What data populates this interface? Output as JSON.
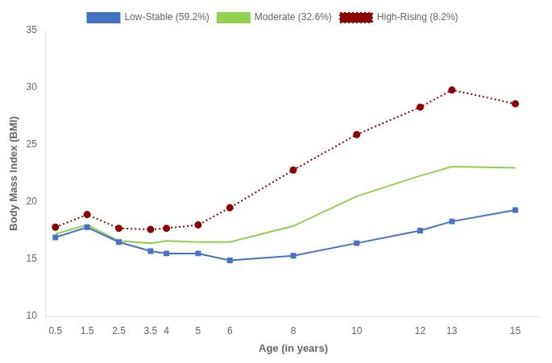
{
  "chart_data": {
    "type": "line",
    "x": [
      0.5,
      1.5,
      2.5,
      3.5,
      4,
      5,
      6,
      8,
      10,
      12,
      13,
      15
    ],
    "series": [
      {
        "name": "Low-Stable (59.2%)",
        "color": "#4472C4",
        "marker": "square",
        "line_style": "solid",
        "values": [
          16.9,
          17.8,
          16.5,
          15.7,
          15.5,
          15.5,
          14.9,
          15.3,
          16.4,
          17.5,
          18.3,
          19.3
        ]
      },
      {
        "name": "Moderate (32.6%)",
        "color": "#92D050",
        "marker": "none",
        "line_style": "solid",
        "values": [
          17.2,
          18.0,
          16.6,
          16.4,
          16.6,
          16.5,
          16.5,
          17.9,
          20.5,
          22.3,
          23.1,
          23.0
        ]
      },
      {
        "name": "High-Rising (8.2%)",
        "color": "#8B0000",
        "marker": "circle",
        "line_style": "dotted",
        "values": [
          17.8,
          18.9,
          17.7,
          17.6,
          17.7,
          18.0,
          19.5,
          22.8,
          25.9,
          28.3,
          29.8,
          28.6
        ]
      }
    ],
    "xlabel": "Age (in years)",
    "ylabel": "Body Mass Index (BMI)",
    "xlim": [
      0.2,
      15.8
    ],
    "xticks": [
      0.5,
      1.5,
      2.5,
      3.5,
      4,
      5,
      6,
      8,
      10,
      12,
      13,
      15
    ],
    "ylim": [
      10,
      35
    ],
    "yticks": [
      10,
      15,
      20,
      25,
      30,
      35
    ],
    "grid": false,
    "legend": "top"
  }
}
